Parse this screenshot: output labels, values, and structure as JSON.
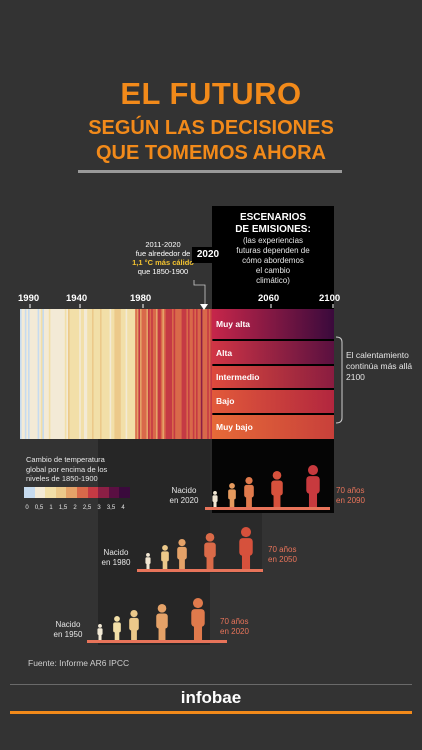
{
  "title": {
    "main": "EL FUTURO",
    "line1": "SEGÚN LAS DECISIONES",
    "line2": "QUE TOMEMOS AHORA"
  },
  "scenarios_box": {
    "title_line1": "ESCENARIOS",
    "title_line2": "DE EMISIONES:",
    "desc_lines": [
      "(las experiencias",
      "futuras dependen de",
      "cómo abordemos",
      "el cambio",
      "climático)"
    ]
  },
  "note_2011": {
    "line1": "2011-2020",
    "line2": "fue alrededor de",
    "highlight": "1,1 °C más cálido",
    "line4": "que 1850-1900"
  },
  "year_2020_label": "2020",
  "continuation_note": "El calentamiento continúa más allá 2100",
  "colors": {
    "title": "#f28a1a",
    "background": "#333333",
    "box": "#000000",
    "highlight": "#f2c230",
    "accent": "#e8745a"
  },
  "chart_data": {
    "type": "heatmap",
    "title": "",
    "x_axis": {
      "tick_labels": [
        "1990",
        "1940",
        "1980",
        "2060",
        "2100"
      ],
      "range": [
        1850,
        2100
      ]
    },
    "scenarios": [
      {
        "name": "Muy alta",
        "color_start": "#c7264a",
        "color_end": "#3a0a3c"
      },
      {
        "name": "Alta",
        "color_start": "#d23545",
        "color_end": "#5a1040"
      },
      {
        "name": "Intermedio",
        "color_start": "#de4a3d",
        "color_end": "#8a1c40"
      },
      {
        "name": "Bajo",
        "color_start": "#e25a3a",
        "color_end": "#b2263e"
      },
      {
        "name": "Muy bajo",
        "color_start": "#e66a38",
        "color_end": "#c8403a"
      }
    ],
    "legend": {
      "title": "Cambio de temperatura global por encima de los niveles de 1850-1900",
      "ticks": [
        "0",
        "0,5",
        "1",
        "1,5",
        "2",
        "2,5",
        "3",
        "3,5",
        "4"
      ],
      "colors": [
        "#c6dbef",
        "#f3ead6",
        "#f2dfa8",
        "#ecc98a",
        "#e5a268",
        "#d9694a",
        "#c53a44",
        "#8c1f45",
        "#5a0f42",
        "#3a0a3c"
      ]
    },
    "generations": [
      {
        "born_line1": "Nacido",
        "born_line2": "en 2020",
        "seventy_line1": "70 años",
        "seventy_line2": "en 2090"
      },
      {
        "born_line1": "Nacido",
        "born_line2": "en 1980",
        "seventy_line1": "70 años",
        "seventy_line2": "en 2050"
      },
      {
        "born_line1": "Nacido",
        "born_line2": "en 1950",
        "seventy_line1": "70 años",
        "seventy_line2": "en 2020"
      }
    ]
  },
  "source": "Fuente: Informe AR6 IPCC",
  "brand": "infobae"
}
